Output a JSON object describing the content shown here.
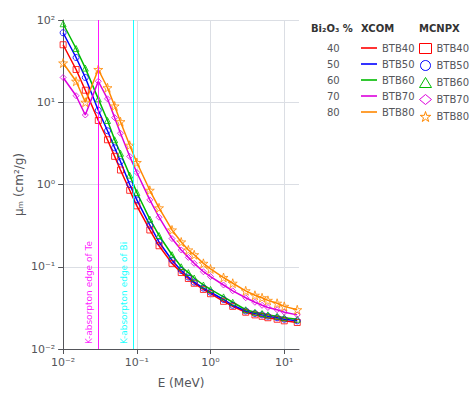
{
  "chart_data": {
    "type": "line",
    "xlabel": "E (MeV)",
    "ylabel": "μₘ (cm²/g)",
    "zlabel": "Bi₂O₃ %",
    "legend_columns": [
      "XCOM",
      "MCNPX"
    ],
    "log": true,
    "grid": true,
    "legend": "right",
    "x": [
      0.01,
      0.015,
      0.02,
      0.03,
      0.04,
      0.05,
      0.06,
      0.08,
      0.1,
      0.15,
      0.2,
      0.3,
      0.4,
      0.5,
      0.6,
      0.8,
      1.0,
      1.5,
      2.0,
      3.0,
      4.0,
      5.0,
      6.0,
      8.0,
      10.0,
      15.0
    ],
    "xlim": [
      0.01,
      15.848931924611133
    ],
    "xticks": [
      {
        "value": 0.01,
        "label": "10⁻²"
      },
      {
        "value": 0.1,
        "label": "10⁻¹"
      },
      {
        "value": 1,
        "label": "10⁰"
      },
      {
        "value": 10,
        "label": "10¹"
      }
    ],
    "ylim": [
      0.01,
      100
    ],
    "yticks": [
      {
        "value": 0.01,
        "label": "10⁻²"
      },
      {
        "value": 0.1,
        "label": "10⁻¹"
      },
      {
        "value": 1,
        "label": "10⁰"
      },
      {
        "value": 10,
        "label": "10¹"
      },
      {
        "value": 100,
        "label": "10²"
      }
    ],
    "series": [
      {
        "name": "BTB40",
        "color": "#ff0000",
        "marker": "square",
        "bi2o3_percent": 40,
        "values": [
          50,
          25,
          14,
          6.0,
          3.5,
          2.2,
          1.5,
          0.85,
          0.55,
          0.28,
          0.18,
          0.11,
          0.085,
          0.072,
          0.063,
          0.053,
          0.047,
          0.038,
          0.033,
          0.028,
          0.026,
          0.025,
          0.024,
          0.023,
          0.022,
          0.021
        ]
      },
      {
        "name": "BTB50",
        "color": "#0000ff",
        "marker": "circle",
        "bi2o3_percent": 50,
        "values": [
          70,
          35,
          20,
          8.0,
          4.5,
          2.8,
          1.9,
          1.0,
          0.65,
          0.32,
          0.2,
          0.12,
          0.09,
          0.075,
          0.065,
          0.055,
          0.049,
          0.04,
          0.034,
          0.029,
          0.027,
          0.026,
          0.025,
          0.024,
          0.023,
          0.022
        ]
      },
      {
        "name": "BTB60",
        "color": "#00bb00",
        "marker": "triangle",
        "bi2o3_percent": 60,
        "values": [
          90,
          45,
          26,
          11,
          6.0,
          3.5,
          2.4,
          1.3,
          0.8,
          0.38,
          0.24,
          0.14,
          0.1,
          0.085,
          0.073,
          0.06,
          0.053,
          0.043,
          0.037,
          0.03,
          0.028,
          0.027,
          0.026,
          0.025,
          0.024,
          0.023
        ]
      },
      {
        "name": "BTB70",
        "color": "#dd00dd",
        "marker": "diamond",
        "bi2o3_percent": 70,
        "values": [
          20,
          12,
          7.0,
          18,
          11,
          6.5,
          4.2,
          2.2,
          1.4,
          0.65,
          0.4,
          0.22,
          0.16,
          0.13,
          0.11,
          0.087,
          0.076,
          0.06,
          0.051,
          0.042,
          0.037,
          0.034,
          0.032,
          0.03,
          0.028,
          0.026
        ]
      },
      {
        "name": "BTB80",
        "color": "#ff8800",
        "marker": "star",
        "bi2o3_percent": 80,
        "values": [
          30,
          18,
          10,
          25,
          15,
          9.0,
          5.8,
          3.0,
          1.85,
          0.85,
          0.52,
          0.28,
          0.2,
          0.16,
          0.14,
          0.11,
          0.094,
          0.074,
          0.063,
          0.051,
          0.045,
          0.042,
          0.039,
          0.036,
          0.033,
          0.03
        ]
      }
    ],
    "annotations": [
      {
        "text": "K-absorpton edge of Bi",
        "x": 0.0907821,
        "color": "cyan"
      },
      {
        "text": "K-absorpton edge of Te",
        "x": 0.0316228,
        "color": "magenta"
      }
    ]
  }
}
